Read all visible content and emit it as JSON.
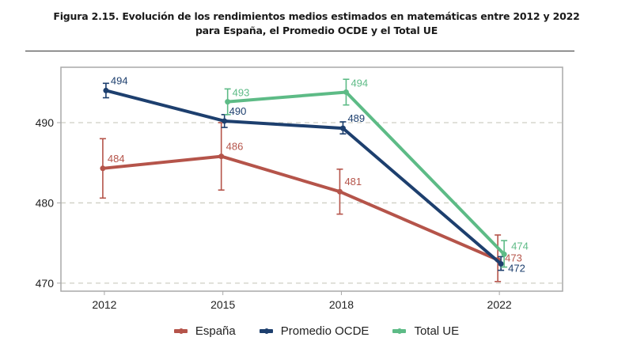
{
  "title_lines": [
    "Figura 2.15. Evolución de los rendimientos medios estimados en matemáticas entre 2012 y 2022",
    "para España, el Promedio OCDE y el Total UE"
  ],
  "chart_data": {
    "type": "line",
    "title": "Figura 2.15. Evolución de los rendimientos medios estimados en matemáticas entre 2012 y 2022 para España, el Promedio OCDE y el Total UE",
    "xlabel": "",
    "ylabel": "",
    "x": [
      "2012",
      "2015",
      "2018",
      "2022"
    ],
    "x_numeric": [
      2012,
      2015,
      2018,
      2022
    ],
    "xlim": [
      2010.9,
      2023.6
    ],
    "ylim": [
      469.0,
      496.9
    ],
    "yticks": [
      470,
      480,
      490
    ],
    "grid": "horizontal dashed",
    "legend": "bottom",
    "series": [
      {
        "name": "España",
        "color": "#b5544a",
        "x": [
          2012,
          2015,
          2018,
          2022
        ],
        "values": [
          484.3,
          485.8,
          481.4,
          472.9
        ],
        "labels": [
          "484",
          "486",
          "481",
          "473"
        ],
        "error_low": [
          480.6,
          481.6,
          478.6,
          470.2
        ],
        "error_high": [
          488.0,
          490.0,
          484.2,
          476.0
        ]
      },
      {
        "name": "Promedio OCDE",
        "color": "#1d3f6e",
        "x": [
          2012,
          2015,
          2018,
          2022
        ],
        "values": [
          494.0,
          490.2,
          489.3,
          472.4
        ],
        "labels": [
          "494",
          "490",
          "489",
          "472"
        ],
        "error_low": [
          493.1,
          489.4,
          488.6,
          471.6
        ],
        "error_high": [
          494.9,
          491.0,
          490.1,
          473.3
        ]
      },
      {
        "name": "Total UE",
        "color": "#5dbb86",
        "x": [
          2015,
          2018,
          2022
        ],
        "values": [
          492.6,
          493.8,
          473.6
        ],
        "labels": [
          "493",
          "494",
          "474"
        ],
        "error_low": [
          491.0,
          492.2,
          472.0
        ],
        "error_high": [
          494.2,
          495.4,
          475.3
        ]
      }
    ]
  }
}
